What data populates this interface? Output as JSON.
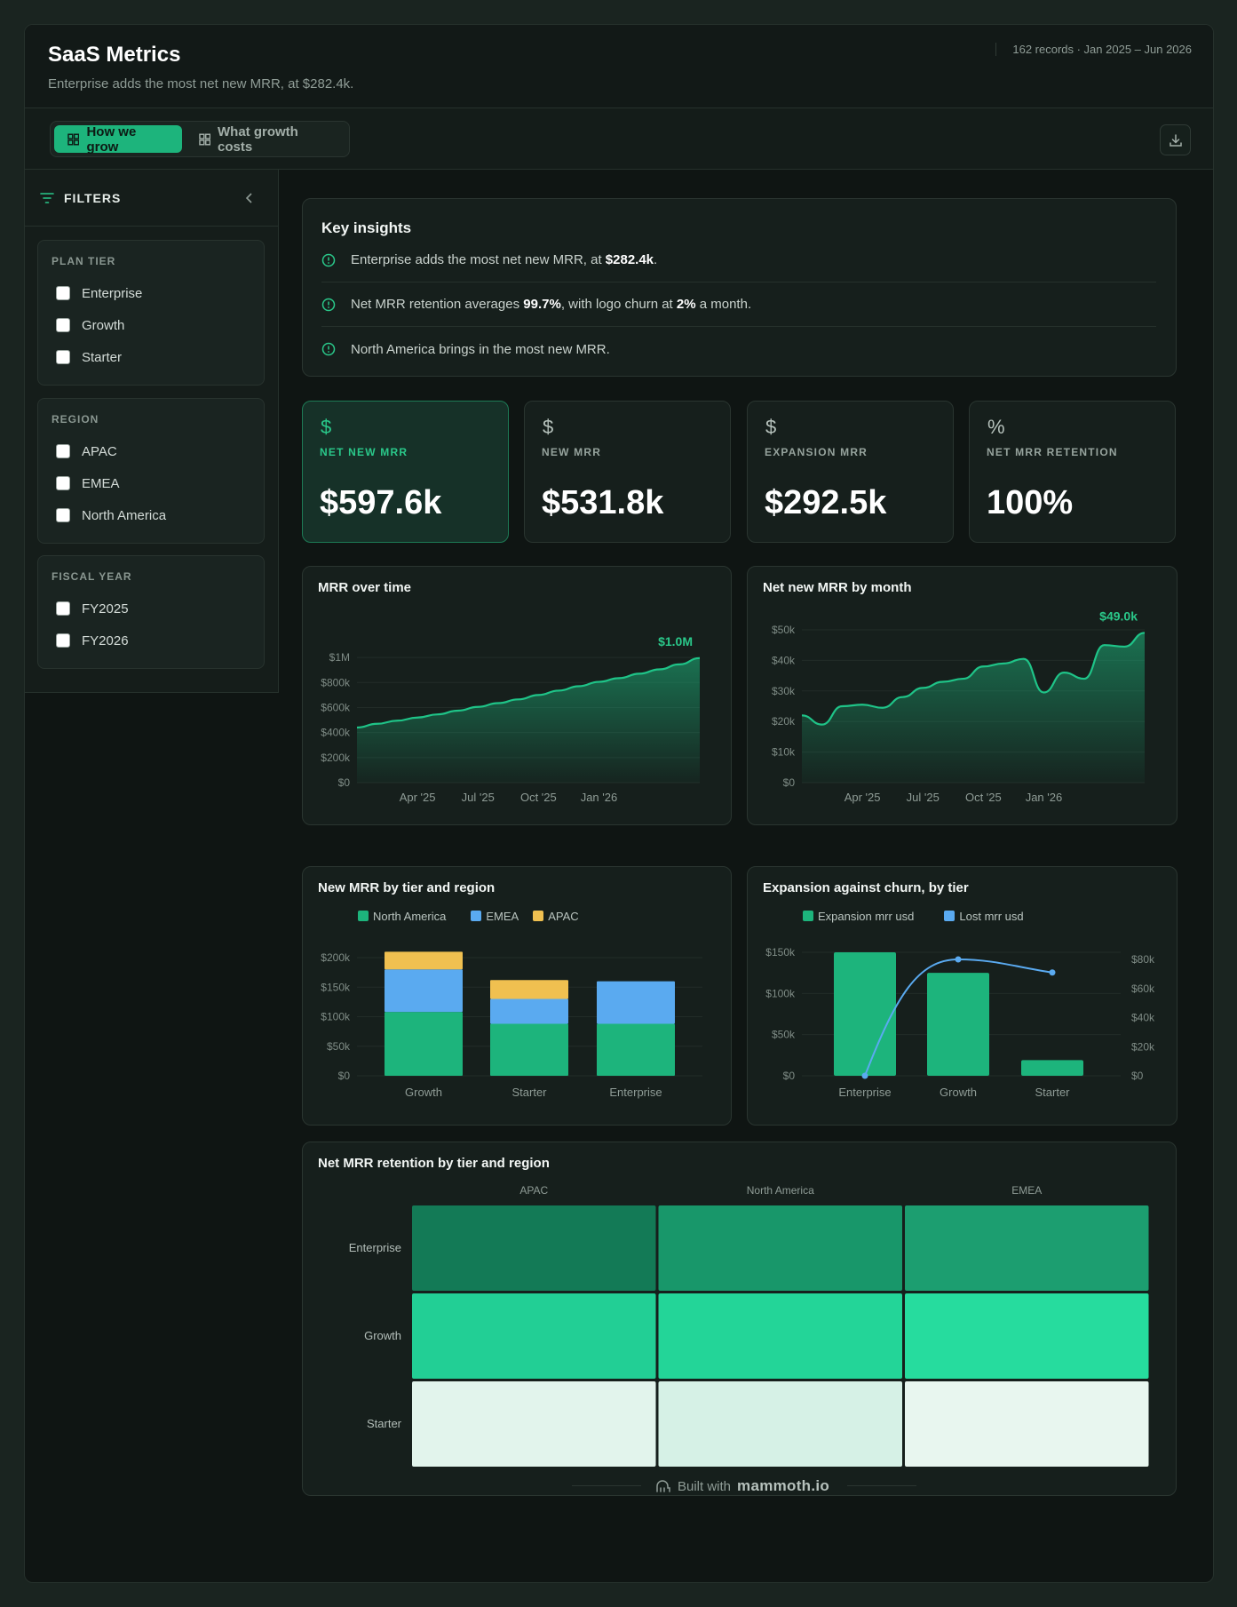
{
  "header": {
    "title": "SaaS Metrics",
    "subtitle": "Enterprise adds the most net new MRR, at $282.4k.",
    "meta": "162 records · Jan 2025 – Jun 2026"
  },
  "tabs": [
    {
      "label": "How we grow",
      "active": true
    },
    {
      "label": "What growth costs",
      "active": false
    }
  ],
  "filters": {
    "title": "FILTERS",
    "groups": [
      {
        "label": "PLAN TIER",
        "options": [
          "Enterprise",
          "Growth",
          "Starter"
        ]
      },
      {
        "label": "REGION",
        "options": [
          "APAC",
          "EMEA",
          "North America"
        ]
      },
      {
        "label": "FISCAL YEAR",
        "options": [
          "FY2025",
          "FY2026"
        ]
      }
    ]
  },
  "insights": {
    "title": "Key insights",
    "items": [
      {
        "pre": "Enterprise adds the most net new MRR, at ",
        "b1": "$282.4k",
        "mid": ".",
        "b2": "",
        "post": ""
      },
      {
        "pre": "Net MRR retention averages ",
        "b1": "99.7%",
        "mid": ", with logo churn at ",
        "b2": "2%",
        "post": " a month."
      },
      {
        "pre": "North America brings in the most new MRR.",
        "b1": "",
        "mid": "",
        "b2": "",
        "post": ""
      }
    ]
  },
  "kpis": [
    {
      "icon": "$",
      "label": "NET NEW MRR",
      "value": "$597.6k",
      "highlight": true
    },
    {
      "icon": "$",
      "label": "NEW MRR",
      "value": "$531.8k",
      "highlight": false
    },
    {
      "icon": "$",
      "label": "EXPANSION MRR",
      "value": "$292.5k",
      "highlight": false
    },
    {
      "icon": "%",
      "label": "NET MRR RETENTION",
      "value": "100%",
      "highlight": false
    }
  ],
  "colors": {
    "accent": "#1db47c",
    "blue": "#5aaaf0",
    "amber": "#f0c050"
  },
  "charts": {
    "mrr_over_time": {
      "title": "MRR over time",
      "end_label": "$1.0M",
      "chart_data": {
        "type": "area",
        "x": [
          "Jan '25",
          "Feb '25",
          "Mar '25",
          "Apr '25",
          "May '25",
          "Jun '25",
          "Jul '25",
          "Aug '25",
          "Sep '25",
          "Oct '25",
          "Nov '25",
          "Dec '25",
          "Jan '26",
          "Feb '26",
          "Mar '26",
          "Apr '26",
          "May '26",
          "Jun '26"
        ],
        "values": [
          440,
          470,
          495,
          520,
          545,
          575,
          605,
          635,
          665,
          700,
          735,
          770,
          805,
          835,
          870,
          905,
          945,
          995
        ],
        "yticks": [
          "$0",
          "$200k",
          "$400k",
          "$600k",
          "$800k",
          "$1M"
        ],
        "xticks": [
          {
            "i": 3,
            "label": "Apr '25"
          },
          {
            "i": 6,
            "label": "Jul '25"
          },
          {
            "i": 9,
            "label": "Oct '25"
          },
          {
            "i": 12,
            "label": "Jan '26"
          }
        ],
        "ylim": [
          0,
          1100
        ]
      }
    },
    "net_new_by_month": {
      "title": "Net new MRR by month",
      "end_label": "$49.0k",
      "chart_data": {
        "type": "area",
        "x": [
          "Jan '25",
          "Feb '25",
          "Mar '25",
          "Apr '25",
          "May '25",
          "Jun '25",
          "Jul '25",
          "Aug '25",
          "Sep '25",
          "Oct '25",
          "Nov '25",
          "Dec '25",
          "Jan '26",
          "Feb '26",
          "Mar '26",
          "Apr '26",
          "May '26",
          "Jun '26"
        ],
        "values": [
          22,
          19,
          25,
          25.5,
          24.5,
          28,
          31,
          33,
          34,
          38,
          39,
          40.5,
          29.5,
          36,
          34,
          45,
          44.5,
          49
        ],
        "yticks": [
          "$0",
          "$10k",
          "$20k",
          "$30k",
          "$40k",
          "$50k"
        ],
        "xticks": [
          {
            "i": 3,
            "label": "Apr '25"
          },
          {
            "i": 6,
            "label": "Jul '25"
          },
          {
            "i": 9,
            "label": "Oct '25"
          },
          {
            "i": 12,
            "label": "Jan '26"
          }
        ],
        "ylim": [
          0,
          50
        ]
      }
    },
    "new_mrr_tier_region": {
      "title": "New MRR by tier and region",
      "chart_data": {
        "type": "bar",
        "stacked": true,
        "categories": [
          "Growth",
          "Starter",
          "Enterprise"
        ],
        "series": [
          {
            "name": "North America",
            "values": [
              108,
              88,
              88
            ],
            "color": "#1db47c"
          },
          {
            "name": "EMEA",
            "values": [
              72,
              42,
              72
            ],
            "color": "#5aaaf0"
          },
          {
            "name": "APAC",
            "values": [
              30,
              32,
              0
            ],
            "color": "#f0c050"
          }
        ],
        "yticks": [
          "$0",
          "$50k",
          "$100k",
          "$150k",
          "$200k"
        ],
        "ylim": [
          0,
          200
        ]
      }
    },
    "expansion_vs_churn": {
      "title": "Expansion against churn, by tier",
      "chart_data": {
        "type": "bar",
        "categories": [
          "Enterprise",
          "Growth",
          "Starter"
        ],
        "series": [
          {
            "name": "Expansion mrr usd",
            "values": [
              150,
              125,
              19
            ],
            "color": "#1db47c",
            "axis": "left"
          },
          {
            "name": "Lost mrr usd",
            "values": [
              0,
              80,
              71
            ],
            "color": "#5aaaf0",
            "axis": "right",
            "type": "line"
          }
        ],
        "yticks_left": [
          "$0",
          "$50k",
          "$100k",
          "$150k"
        ],
        "yticks_right": [
          "$0",
          "$20k",
          "$40k",
          "$60k",
          "$80k"
        ],
        "ylim_left": [
          0,
          150
        ],
        "ylim_right": [
          0,
          80
        ]
      }
    },
    "retention_heatmap": {
      "title": "Net MRR retention by tier and region",
      "chart_data": {
        "type": "heatmap",
        "columns": [
          "APAC",
          "North America",
          "EMEA"
        ],
        "rows": [
          "Enterprise",
          "Growth",
          "Starter"
        ],
        "colors": [
          [
            "#137a56",
            "#18976a",
            "#1c9e70"
          ],
          [
            "#22cf95",
            "#23d598",
            "#26dc9e"
          ],
          [
            "#e2f4ec",
            "#d6f1e6",
            "#e8f6ef"
          ]
        ]
      }
    }
  },
  "footer": {
    "built": "Built with",
    "brand": "mammoth.io"
  }
}
